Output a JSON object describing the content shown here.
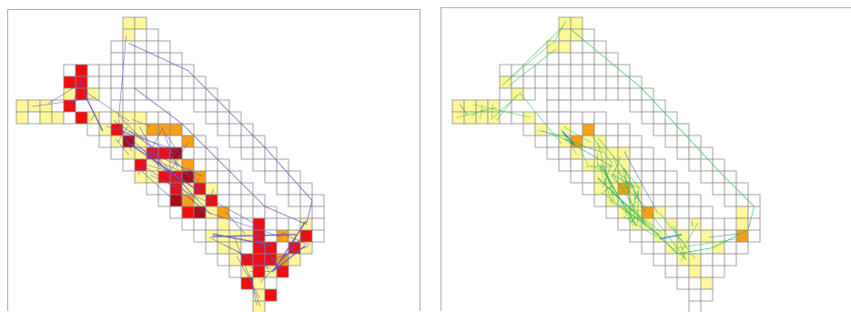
{
  "colors": {
    "background": "#ffffff",
    "panel_border": "#aaaaaa",
    "cell_border": "#8a8a8a",
    "heat_low": "#fff89a",
    "heat_mid": "#fb9f15",
    "heat_high": "#f20d0d",
    "heat_max": "#a80d1a",
    "left_trace_color": "#5a4fc8",
    "right_trace_color": "#39c04b",
    "right_trace_highlight": "#1f6fb5"
  },
  "panels": [
    {
      "name": "left-heatmap-panel",
      "trace_style": "blue-lines",
      "heat_scheme": "yellow-to-red"
    },
    {
      "name": "right-heatmap-panel",
      "trace_style": "green-lines",
      "heat_scheme": "yellow-to-orange"
    }
  ]
}
